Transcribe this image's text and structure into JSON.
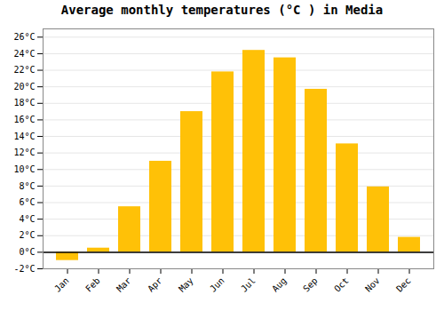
{
  "chart_data": {
    "type": "bar",
    "title": "Average monthly temperatures (°C ) in Media",
    "categories": [
      "Jan",
      "Feb",
      "Mar",
      "Apr",
      "May",
      "Jun",
      "Jul",
      "Aug",
      "Sep",
      "Oct",
      "Nov",
      "Dec"
    ],
    "values": [
      -1.0,
      0.5,
      5.5,
      11.0,
      17.0,
      21.8,
      24.4,
      23.5,
      19.7,
      13.1,
      7.9,
      1.8
    ],
    "color": "#FFC107",
    "ylim": [
      -2,
      27
    ],
    "yticks": [
      {
        "value": -2,
        "label": "-2°C"
      },
      {
        "value": 0,
        "label": "0°C"
      },
      {
        "value": 2,
        "label": "2°C"
      },
      {
        "value": 4,
        "label": "4°C"
      },
      {
        "value": 6,
        "label": "6°C"
      },
      {
        "value": 8,
        "label": "8°C"
      },
      {
        "value": 10,
        "label": "10°C"
      },
      {
        "value": 12,
        "label": "12°C"
      },
      {
        "value": 14,
        "label": "14°C"
      },
      {
        "value": 16,
        "label": "16°C"
      },
      {
        "value": 18,
        "label": "18°C"
      },
      {
        "value": 20,
        "label": "20°C"
      },
      {
        "value": 22,
        "label": "22°C"
      },
      {
        "value": 24,
        "label": "24°C"
      },
      {
        "value": 26,
        "label": "26°C"
      }
    ],
    "grid": true
  }
}
